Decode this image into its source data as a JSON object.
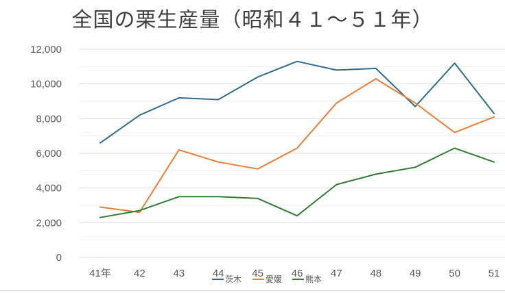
{
  "chart_data": {
    "type": "line",
    "title": "全国の栗生産量（昭和４１〜５１年）",
    "categories": [
      "41年",
      "42",
      "43",
      "44",
      "45",
      "46",
      "47",
      "48",
      "49",
      "50",
      "51"
    ],
    "ylim": [
      0,
      12000
    ],
    "yticks": [
      0,
      2000,
      4000,
      6000,
      8000,
      10000,
      12000
    ],
    "ytick_labels": [
      "0",
      "2,000",
      "4,000",
      "6,000",
      "8,000",
      "10,000",
      "12,000"
    ],
    "grid": true,
    "legend_position": "bottom",
    "series": [
      {
        "name": "茨木",
        "color": "#2e6b8f",
        "values": [
          6600,
          8200,
          9200,
          9100,
          10400,
          11300,
          10800,
          10900,
          8700,
          11200,
          8300
        ]
      },
      {
        "name": "愛媛",
        "color": "#ed7d31",
        "values": [
          2900,
          2600,
          6200,
          5500,
          5100,
          6300,
          8900,
          10300,
          8900,
          7200,
          8100
        ]
      },
      {
        "name": "熊本",
        "color": "#2e7d32",
        "values": [
          2300,
          2700,
          3500,
          3500,
          3400,
          2400,
          4200,
          4800,
          5200,
          6300,
          5500
        ]
      }
    ]
  }
}
